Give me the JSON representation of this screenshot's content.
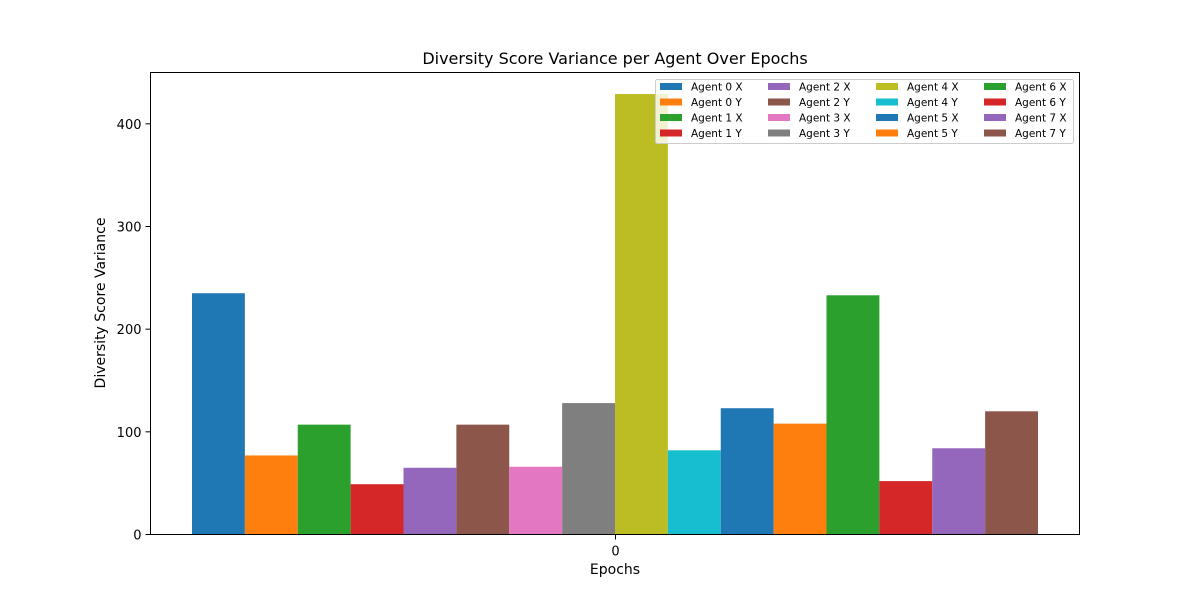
{
  "chart_data": {
    "type": "bar",
    "title": "Diversity Score Variance per Agent Over Epochs",
    "xlabel": "Epochs",
    "ylabel": "Diversity Score Variance",
    "categories": [
      "0"
    ],
    "ylim": [
      0,
      450
    ],
    "yticks": [
      0,
      100,
      200,
      300,
      400
    ],
    "grid": false,
    "legend_position": "top-right",
    "series": [
      {
        "name": "Agent 0 X",
        "values": [
          235
        ],
        "color": "#1f77b4"
      },
      {
        "name": "Agent 0 Y",
        "values": [
          77
        ],
        "color": "#ff7f0e"
      },
      {
        "name": "Agent 1 X",
        "values": [
          107
        ],
        "color": "#2ca02c"
      },
      {
        "name": "Agent 1 Y",
        "values": [
          49
        ],
        "color": "#d62728"
      },
      {
        "name": "Agent 2 X",
        "values": [
          65
        ],
        "color": "#9467bd"
      },
      {
        "name": "Agent 2 Y",
        "values": [
          107
        ],
        "color": "#8c564b"
      },
      {
        "name": "Agent 3 X",
        "values": [
          66
        ],
        "color": "#e377c2"
      },
      {
        "name": "Agent 3 Y",
        "values": [
          128
        ],
        "color": "#7f7f7f"
      },
      {
        "name": "Agent 4 X",
        "values": [
          429
        ],
        "color": "#bcbd22"
      },
      {
        "name": "Agent 4 Y",
        "values": [
          82
        ],
        "color": "#17becf"
      },
      {
        "name": "Agent 5 X",
        "values": [
          123
        ],
        "color": "#1f77b4"
      },
      {
        "name": "Agent 5 Y",
        "values": [
          108
        ],
        "color": "#ff7f0e"
      },
      {
        "name": "Agent 6 X",
        "values": [
          233
        ],
        "color": "#2ca02c"
      },
      {
        "name": "Agent 6 Y",
        "values": [
          52
        ],
        "color": "#d62728"
      },
      {
        "name": "Agent 7 X",
        "values": [
          84
        ],
        "color": "#9467bd"
      },
      {
        "name": "Agent 7 Y",
        "values": [
          120
        ],
        "color": "#8c564b"
      }
    ]
  }
}
